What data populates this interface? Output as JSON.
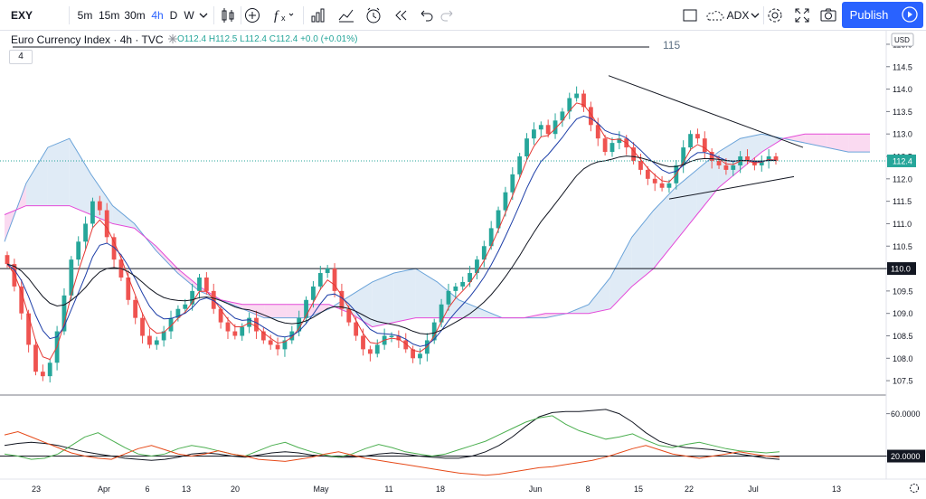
{
  "toolbar": {
    "symbol": "EXY",
    "intervals": [
      "5m",
      "15m",
      "30m",
      "4h",
      "D",
      "W"
    ],
    "active_interval": "4h",
    "compare": "ADX",
    "publish": "Publish"
  },
  "legend": {
    "title": "Euro Currency Index · 4h · TVC",
    "o": "O112.4",
    "h": "H112.5",
    "l": "L112.4",
    "c": "C112.4",
    "chg": "+0.0 (+0.01%)",
    "collapse": "4"
  },
  "colors": {
    "up": "#26a69a",
    "down": "#ef5350",
    "cloud_green_line": "#6aa3d9",
    "cloud_green_fill": "#dbe8f5",
    "cloud_red_line": "#e44ad8",
    "cloud_red_fill": "#f9d4ee",
    "fast_ma": "#e53935",
    "mid_ma": "#1e3fa8",
    "slow_ma": "#131722",
    "last_price_bg": "#26a69a",
    "accent": "#2962ff"
  },
  "chart_data": [
    {
      "type": "candlestick",
      "title": "Euro Currency Index · 4h · TVC",
      "currency": "USD",
      "ylim": [
        107.2,
        115.1
      ],
      "yticks": [
        "107.5",
        "108.0",
        "108.5",
        "109.0",
        "109.5",
        "110.0",
        "110.5",
        "111.0",
        "111.5",
        "112.0",
        "112.5",
        "113.0",
        "113.5",
        "114.0",
        "114.5",
        "115.0"
      ],
      "xticks": [
        "23",
        "Apr",
        "6",
        "13",
        "20",
        "May",
        "11",
        "18",
        "Jun",
        "8",
        "15",
        "22",
        "Jul",
        "13"
      ],
      "xtick_pos": [
        40,
        115,
        163,
        206,
        260,
        355,
        430,
        487,
        592,
        650,
        706,
        762,
        833,
        925
      ],
      "horizontal_level": {
        "value": 110.0,
        "label": "110.0"
      },
      "top_line": {
        "value": 115.0,
        "label": "115"
      },
      "last_price": {
        "value": 112.4,
        "label": "112.4"
      },
      "trendline_upper": [
        [
          673,
          114.3
        ],
        [
          888,
          112.7
        ]
      ],
      "trendline_lower": [
        [
          740,
          111.55
        ],
        [
          878,
          112.05
        ]
      ],
      "closes": [
        110.1,
        109.6,
        109.0,
        108.3,
        107.7,
        107.6,
        107.9,
        108.6,
        109.4,
        110.2,
        110.6,
        111.0,
        111.5,
        111.3,
        110.7,
        110.2,
        109.8,
        109.3,
        108.9,
        108.5,
        108.3,
        108.4,
        108.6,
        108.9,
        109.1,
        109.2,
        109.5,
        109.8,
        109.5,
        109.1,
        108.8,
        108.6,
        108.5,
        108.7,
        108.9,
        108.6,
        108.4,
        108.3,
        108.2,
        108.4,
        108.6,
        108.9,
        109.3,
        109.6,
        109.9,
        110.0,
        109.5,
        109.1,
        108.8,
        108.5,
        108.2,
        108.1,
        108.3,
        108.5,
        108.5,
        108.4,
        108.2,
        108.0,
        108.1,
        108.4,
        108.8,
        109.2,
        109.5,
        109.6,
        109.7,
        109.9,
        110.2,
        110.5,
        110.9,
        111.3,
        111.7,
        112.1,
        112.5,
        112.9,
        113.1,
        113.2,
        113.0,
        113.3,
        113.5,
        113.8,
        113.9,
        113.6,
        113.2,
        112.9,
        112.6,
        112.8,
        112.9,
        112.7,
        112.4,
        112.2,
        112.0,
        111.9,
        111.8,
        111.9,
        112.3,
        112.7,
        113.0,
        112.9,
        112.6,
        112.4,
        112.3,
        112.2,
        112.3,
        112.5,
        112.4,
        112.3,
        112.4,
        112.5,
        112.4
      ],
      "cloud_span_a": [
        110.6,
        111.9,
        112.7,
        112.9,
        112.1,
        111.4,
        111.0,
        110.4,
        109.9,
        109.5,
        109.3,
        109.1,
        108.9,
        108.9,
        108.9,
        109.1,
        109.4,
        109.7,
        109.9,
        110.0,
        109.7,
        109.3,
        109.1,
        108.9,
        108.9,
        108.9,
        109.0,
        109.2,
        109.8,
        110.7,
        111.3,
        111.8,
        112.2,
        112.6,
        112.9,
        113.0,
        112.9,
        112.8,
        112.7,
        112.6,
        112.6
      ],
      "cloud_span_b": [
        111.2,
        111.4,
        111.4,
        111.4,
        111.2,
        111.0,
        110.9,
        110.5,
        110.0,
        109.6,
        109.3,
        109.2,
        109.2,
        109.2,
        109.2,
        109.2,
        109.0,
        108.7,
        108.8,
        108.9,
        108.9,
        108.9,
        108.9,
        108.9,
        108.9,
        109.0,
        109.0,
        109.0,
        109.1,
        109.6,
        110.0,
        110.6,
        111.2,
        111.8,
        112.2,
        112.6,
        112.9,
        113.0,
        113.0,
        113.0,
        113.0
      ]
    },
    {
      "type": "line",
      "title": "ADX",
      "ylim": [
        0,
        75
      ],
      "yticks": [
        "60.0000",
        "20.0000"
      ],
      "level": 20,
      "series": [
        {
          "color": "#131722",
          "values": [
            30,
            32,
            33,
            32,
            30,
            27,
            24,
            22,
            20,
            18,
            17,
            16,
            17,
            19,
            22,
            23,
            22,
            20,
            19,
            21,
            23,
            24,
            23,
            21,
            20,
            19,
            19,
            20,
            22,
            23,
            22,
            20,
            19,
            18,
            18,
            20,
            24,
            30,
            38,
            48,
            57,
            61,
            62,
            62,
            63,
            64,
            60,
            52,
            42,
            34,
            30,
            28,
            27,
            26,
            24,
            22,
            20,
            18,
            17
          ]
        },
        {
          "color": "#4caf50",
          "values": [
            22,
            20,
            17,
            18,
            22,
            30,
            38,
            42,
            35,
            28,
            22,
            20,
            22,
            27,
            30,
            28,
            25,
            22,
            20,
            25,
            30,
            33,
            28,
            24,
            21,
            19,
            22,
            27,
            31,
            28,
            24,
            22,
            20,
            22,
            26,
            30,
            34,
            40,
            46,
            52,
            56,
            58,
            50,
            44,
            40,
            36,
            38,
            41,
            35,
            30,
            28,
            31,
            33,
            30,
            27,
            25,
            24,
            23,
            24
          ]
        },
        {
          "color": "#e64a19",
          "values": [
            40,
            43,
            38,
            33,
            28,
            23,
            20,
            18,
            17,
            22,
            27,
            30,
            26,
            22,
            20,
            22,
            25,
            22,
            20,
            17,
            16,
            15,
            17,
            19,
            22,
            24,
            21,
            18,
            16,
            14,
            12,
            10,
            8,
            6,
            4,
            3,
            2,
            3,
            5,
            7,
            9,
            10,
            12,
            14,
            16,
            19,
            23,
            27,
            30,
            26,
            22,
            20,
            18,
            20,
            22,
            24,
            22,
            20,
            19
          ]
        }
      ]
    }
  ]
}
